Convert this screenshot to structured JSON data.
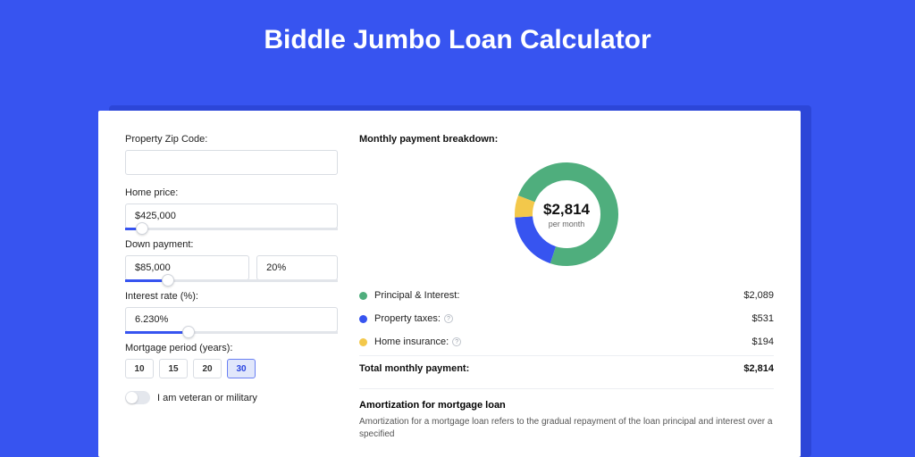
{
  "page": {
    "title": "Biddle Jumbo Loan Calculator"
  },
  "colors": {
    "accent": "#3754f0",
    "bg": "#3754f0",
    "shadow_card": "#2c46d8",
    "series_principal": "#4fae7d",
    "series_taxes": "#3754f0",
    "series_insurance": "#f3c84b"
  },
  "form": {
    "zip": {
      "label": "Property Zip Code:",
      "value": ""
    },
    "home_price": {
      "label": "Home price:",
      "value": "$425,000",
      "slider_pct": 8
    },
    "down_payment": {
      "label": "Down payment:",
      "value": "$85,000",
      "percent": "20%",
      "slider_pct": 20
    },
    "interest_rate": {
      "label": "Interest rate (%):",
      "value": "6.230%",
      "slider_pct": 30
    },
    "mortgage_period": {
      "label": "Mortgage period (years):",
      "options": [
        "10",
        "15",
        "20",
        "30"
      ],
      "selected": "30"
    },
    "veteran": {
      "label": "I am veteran or military"
    }
  },
  "breakdown": {
    "title": "Monthly payment breakdown:",
    "chart": {
      "type": "donut",
      "center_value": "$2,814",
      "center_sub": "per month",
      "radius": 48,
      "stroke_width": 20,
      "slices": [
        {
          "label": "Principal & Interest:",
          "value": "$2,089",
          "amount": 2089,
          "color": "#4fae7d"
        },
        {
          "label": "Property taxes:",
          "value": "$531",
          "amount": 531,
          "color": "#3754f0",
          "help": true
        },
        {
          "label": "Home insurance:",
          "value": "$194",
          "amount": 194,
          "color": "#f3c84b",
          "help": true
        }
      ]
    },
    "total": {
      "label": "Total monthly payment:",
      "value": "$2,814"
    }
  },
  "amortization": {
    "title": "Amortization for mortgage loan",
    "text": "Amortization for a mortgage loan refers to the gradual repayment of the loan principal and interest over a specified"
  }
}
